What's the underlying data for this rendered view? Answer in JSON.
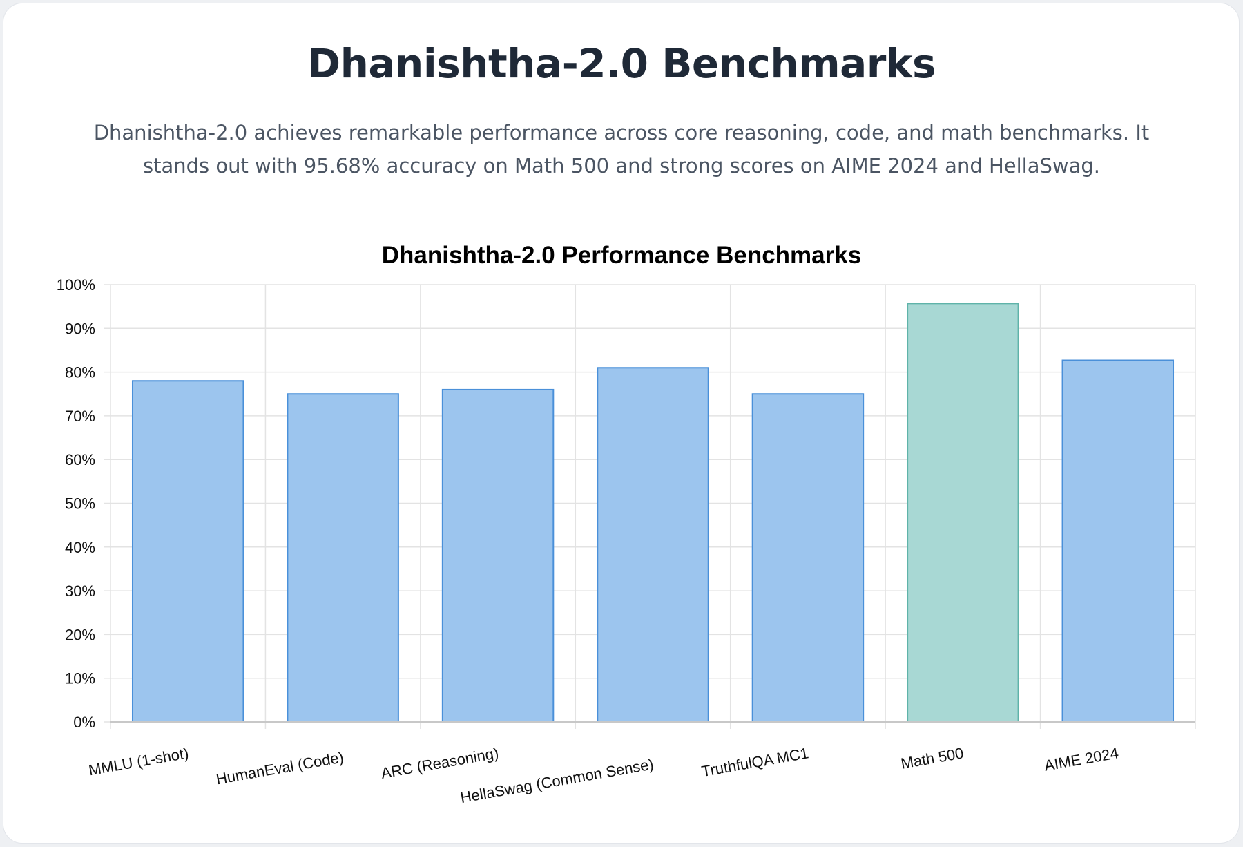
{
  "header": {
    "title": "Dhanishtha-2.0 Benchmarks",
    "subtitle": "Dhanishtha-2.0 achieves remarkable performance across core reasoning, code, and math benchmarks. It stands out with 95.68% accuracy on Math 500 and strong scores on AIME 2024 and HellaSwag."
  },
  "colors": {
    "default_bar_fill": "#9cc5ee",
    "default_bar_stroke": "#4a90d9",
    "highlight_bar_fill": "#a8d8d4",
    "highlight_bar_stroke": "#5fb3a9",
    "grid": "#e3e3e3"
  },
  "chart_data": {
    "type": "bar",
    "title": "Dhanishtha-2.0 Performance Benchmarks",
    "xlabel": "",
    "ylabel": "",
    "categories": [
      "MMLU (1-shot)",
      "HumanEval (Code)",
      "ARC (Reasoning)",
      "HellaSwag (Common Sense)",
      "TruthfulQA MC1",
      "Math 500",
      "AIME 2024"
    ],
    "values": [
      78,
      75,
      76,
      81,
      75,
      95.68,
      82.7
    ],
    "highlight": [
      false,
      false,
      false,
      false,
      false,
      true,
      false
    ],
    "ylim": [
      0,
      100
    ],
    "yticks": [
      0,
      10,
      20,
      30,
      40,
      50,
      60,
      70,
      80,
      90,
      100
    ],
    "ytick_labels": [
      "0%",
      "10%",
      "20%",
      "30%",
      "40%",
      "50%",
      "60%",
      "70%",
      "80%",
      "90%",
      "100%"
    ],
    "grid": true,
    "legend": "none"
  }
}
